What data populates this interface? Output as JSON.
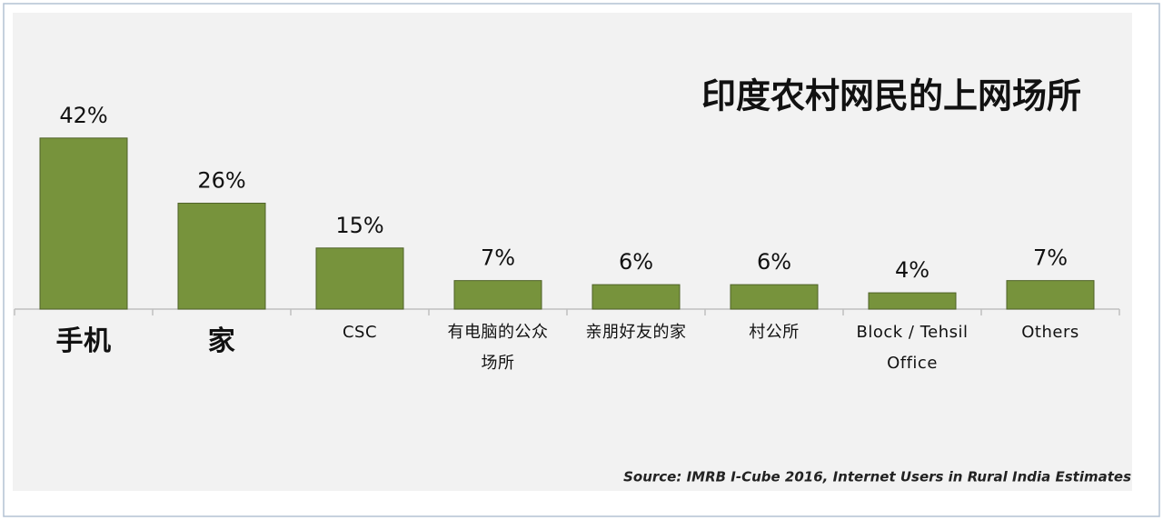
{
  "chart_data": {
    "type": "bar",
    "title": "印度农村网民的上网场所",
    "categories": [
      "手机",
      "家",
      "CSC",
      "有电脑的公众场所",
      "亲朋好友的家",
      "村公所",
      "Block / Tehsil Office",
      "Others"
    ],
    "values": [
      42,
      26,
      15,
      7,
      6,
      6,
      4,
      7
    ],
    "value_labels": [
      "42%",
      "26%",
      "15%",
      "7%",
      "6%",
      "6%",
      "4%",
      "7%"
    ],
    "color": "#77933c",
    "source": "Source: IMRB I-Cube 2016, Internet Users in Rural India Estimates"
  }
}
